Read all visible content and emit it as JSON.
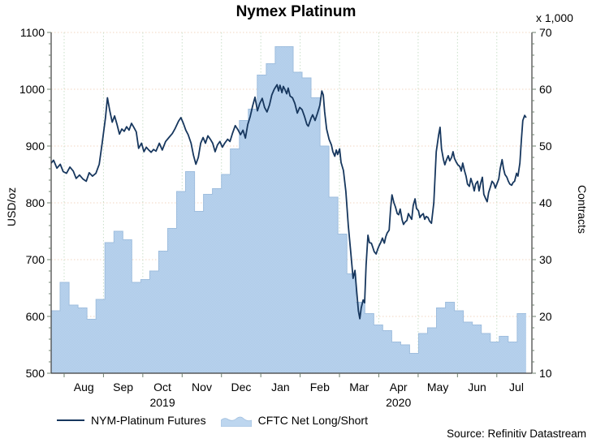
{
  "title": "Nymex Platinum",
  "source_note": "Source: Refinitiv Datastream",
  "legend": {
    "items": [
      {
        "label": "NYM-Platinum Futures",
        "swatch": "line"
      },
      {
        "label": "CFTC Net Long/Short",
        "swatch": "area"
      }
    ]
  },
  "colors": {
    "line": "#17375e",
    "area_fill": "#bdd6ef",
    "area_fill2": "#abc8e7",
    "area_edge": "#9fbede",
    "grid_vertical": "#c9dfc9",
    "grid_horizontal": "#f2d6c2",
    "axis": "#3c3c3c",
    "tick": "#6e7f6e",
    "text": "#000000"
  },
  "chart_data": {
    "type": "line+area",
    "title": "Nymex Platinum",
    "x_axis": {
      "months": [
        "Aug",
        "Sep",
        "Oct",
        "Nov",
        "Dec",
        "Jan",
        "Feb",
        "Mar",
        "Apr",
        "May",
        "Jun",
        "Jul"
      ],
      "years": [
        {
          "label": "2019",
          "under_month_index": 2
        },
        {
          "label": "2020",
          "under_month_index": 8
        }
      ],
      "start_offset_frac": 0.027,
      "month_width_frac": 0.081818
    },
    "left_axis": {
      "label": "USD/oz",
      "min": 500,
      "max": 1100,
      "major_step": 100,
      "minor_step": 20
    },
    "right_axis": {
      "label": "Contracts",
      "header": "x 1,000",
      "min": 10,
      "max": 70,
      "major_step": 10,
      "minor_step": 2
    },
    "grid": {
      "horizontal": true,
      "vertical": true,
      "style": "dotted"
    },
    "series": [
      {
        "name": "NYM-Platinum Futures",
        "type": "line",
        "axis": "left",
        "units": "USD/oz",
        "points": [
          [
            0,
            870
          ],
          [
            0.005,
            875
          ],
          [
            0.012,
            861
          ],
          [
            0.019,
            868
          ],
          [
            0.025,
            855
          ],
          [
            0.032,
            852
          ],
          [
            0.039,
            863
          ],
          [
            0.046,
            856
          ],
          [
            0.052,
            843
          ],
          [
            0.059,
            849
          ],
          [
            0.066,
            842
          ],
          [
            0.073,
            838
          ],
          [
            0.079,
            853
          ],
          [
            0.086,
            847
          ],
          [
            0.093,
            852
          ],
          [
            0.1,
            868
          ],
          [
            0.106,
            905
          ],
          [
            0.113,
            950
          ],
          [
            0.117,
            985
          ],
          [
            0.122,
            962
          ],
          [
            0.127,
            942
          ],
          [
            0.132,
            953
          ],
          [
            0.137,
            938
          ],
          [
            0.142,
            921
          ],
          [
            0.147,
            930
          ],
          [
            0.152,
            926
          ],
          [
            0.157,
            934
          ],
          [
            0.162,
            928
          ],
          [
            0.167,
            940
          ],
          [
            0.172,
            933
          ],
          [
            0.177,
            925
          ],
          [
            0.182,
            896
          ],
          [
            0.188,
            905
          ],
          [
            0.193,
            890
          ],
          [
            0.198,
            898
          ],
          [
            0.203,
            893
          ],
          [
            0.208,
            889
          ],
          [
            0.213,
            894
          ],
          [
            0.218,
            891
          ],
          [
            0.225,
            905
          ],
          [
            0.231,
            893
          ],
          [
            0.238,
            908
          ],
          [
            0.245,
            915
          ],
          [
            0.252,
            922
          ],
          [
            0.258,
            931
          ],
          [
            0.265,
            944
          ],
          [
            0.27,
            950
          ],
          [
            0.275,
            940
          ],
          [
            0.28,
            928
          ],
          [
            0.285,
            920
          ],
          [
            0.291,
            905
          ],
          [
            0.296,
            884
          ],
          [
            0.301,
            868
          ],
          [
            0.306,
            880
          ],
          [
            0.311,
            905
          ],
          [
            0.316,
            915
          ],
          [
            0.321,
            905
          ],
          [
            0.326,
            918
          ],
          [
            0.331,
            912
          ],
          [
            0.336,
            905
          ],
          [
            0.341,
            890
          ],
          [
            0.346,
            902
          ],
          [
            0.351,
            908
          ],
          [
            0.356,
            898
          ],
          [
            0.361,
            905
          ],
          [
            0.367,
            912
          ],
          [
            0.372,
            908
          ],
          [
            0.377,
            922
          ],
          [
            0.383,
            936
          ],
          [
            0.389,
            928
          ],
          [
            0.394,
            920
          ],
          [
            0.399,
            928
          ],
          [
            0.404,
            914
          ],
          [
            0.409,
            938
          ],
          [
            0.414,
            952
          ],
          [
            0.419,
            970
          ],
          [
            0.424,
            986
          ],
          [
            0.429,
            962
          ],
          [
            0.434,
            975
          ],
          [
            0.439,
            984
          ],
          [
            0.444,
            968
          ],
          [
            0.449,
            960
          ],
          [
            0.454,
            972
          ],
          [
            0.459,
            990
          ],
          [
            0.464,
            1000
          ],
          [
            0.47,
            1008
          ],
          [
            0.473,
            997
          ],
          [
            0.476,
            1007
          ],
          [
            0.48,
            994
          ],
          [
            0.483,
            1005
          ],
          [
            0.486,
            1000
          ],
          [
            0.49,
            992
          ],
          [
            0.493,
            1002
          ],
          [
            0.497,
            988
          ],
          [
            0.502,
            985
          ],
          [
            0.507,
            975
          ],
          [
            0.512,
            958
          ],
          [
            0.517,
            968
          ],
          [
            0.522,
            964
          ],
          [
            0.527,
            952
          ],
          [
            0.532,
            938
          ],
          [
            0.535,
            935
          ],
          [
            0.541,
            950
          ],
          [
            0.544,
            955
          ],
          [
            0.549,
            945
          ],
          [
            0.554,
            958
          ],
          [
            0.559,
            972
          ],
          [
            0.563,
            997
          ],
          [
            0.566,
            990
          ],
          [
            0.569,
            960
          ],
          [
            0.573,
            930
          ],
          [
            0.578,
            912
          ],
          [
            0.583,
            902
          ],
          [
            0.586,
            890
          ],
          [
            0.59,
            882
          ],
          [
            0.593,
            893
          ],
          [
            0.596,
            885
          ],
          [
            0.6,
            895
          ],
          [
            0.603,
            871
          ],
          [
            0.608,
            857
          ],
          [
            0.613,
            820
          ],
          [
            0.618,
            760
          ],
          [
            0.623,
            715
          ],
          [
            0.628,
            667
          ],
          [
            0.632,
            681
          ],
          [
            0.635,
            650
          ],
          [
            0.639,
            610
          ],
          [
            0.642,
            596
          ],
          [
            0.645,
            615
          ],
          [
            0.649,
            629
          ],
          [
            0.652,
            624
          ],
          [
            0.655,
            690
          ],
          [
            0.659,
            743
          ],
          [
            0.662,
            730
          ],
          [
            0.666,
            729
          ],
          [
            0.669,
            722
          ],
          [
            0.672,
            714
          ],
          [
            0.676,
            710
          ],
          [
            0.679,
            718
          ],
          [
            0.682,
            724
          ],
          [
            0.686,
            731
          ],
          [
            0.689,
            738
          ],
          [
            0.693,
            729
          ],
          [
            0.696,
            740
          ],
          [
            0.699,
            747
          ],
          [
            0.703,
            752
          ],
          [
            0.706,
            790
          ],
          [
            0.709,
            814
          ],
          [
            0.713,
            800
          ],
          [
            0.716,
            793
          ],
          [
            0.72,
            781
          ],
          [
            0.723,
            779
          ],
          [
            0.726,
            789
          ],
          [
            0.73,
            770
          ],
          [
            0.733,
            762
          ],
          [
            0.736,
            766
          ],
          [
            0.74,
            769
          ],
          [
            0.743,
            781
          ],
          [
            0.747,
            775
          ],
          [
            0.75,
            771
          ],
          [
            0.753,
            795
          ],
          [
            0.757,
            807
          ],
          [
            0.76,
            790
          ],
          [
            0.764,
            786
          ],
          [
            0.767,
            774
          ],
          [
            0.77,
            778
          ],
          [
            0.774,
            781
          ],
          [
            0.777,
            771
          ],
          [
            0.78,
            776
          ],
          [
            0.784,
            774
          ],
          [
            0.787,
            768
          ],
          [
            0.791,
            764
          ],
          [
            0.796,
            800
          ],
          [
            0.801,
            890
          ],
          [
            0.806,
            920
          ],
          [
            0.809,
            933
          ],
          [
            0.812,
            895
          ],
          [
            0.816,
            876
          ],
          [
            0.819,
            867
          ],
          [
            0.822,
            875
          ],
          [
            0.826,
            883
          ],
          [
            0.829,
            874
          ],
          [
            0.833,
            880
          ],
          [
            0.836,
            890
          ],
          [
            0.839,
            878
          ],
          [
            0.843,
            871
          ],
          [
            0.846,
            867
          ],
          [
            0.85,
            864
          ],
          [
            0.853,
            856
          ],
          [
            0.856,
            870
          ],
          [
            0.86,
            856
          ],
          [
            0.863,
            847
          ],
          [
            0.866,
            833
          ],
          [
            0.87,
            829
          ],
          [
            0.873,
            843
          ],
          [
            0.877,
            832
          ],
          [
            0.88,
            821
          ],
          [
            0.883,
            833
          ],
          [
            0.887,
            838
          ],
          [
            0.89,
            821
          ],
          [
            0.894,
            836
          ],
          [
            0.897,
            845
          ],
          [
            0.9,
            815
          ],
          [
            0.904,
            807
          ],
          [
            0.907,
            802
          ],
          [
            0.91,
            818
          ],
          [
            0.914,
            829
          ],
          [
            0.917,
            838
          ],
          [
            0.921,
            834
          ],
          [
            0.924,
            826
          ],
          [
            0.927,
            833
          ],
          [
            0.931,
            842
          ],
          [
            0.934,
            860
          ],
          [
            0.938,
            876
          ],
          [
            0.941,
            860
          ],
          [
            0.944,
            850
          ],
          [
            0.948,
            845
          ],
          [
            0.951,
            838
          ],
          [
            0.954,
            833
          ],
          [
            0.958,
            831
          ],
          [
            0.961,
            836
          ],
          [
            0.964,
            838
          ],
          [
            0.968,
            852
          ],
          [
            0.971,
            847
          ],
          [
            0.975,
            870
          ],
          [
            0.978,
            910
          ],
          [
            0.981,
            945
          ],
          [
            0.985,
            954
          ],
          [
            0.988,
            950
          ]
        ]
      },
      {
        "name": "CFTC Net Long/Short",
        "type": "area-step",
        "axis": "right",
        "units": "thousand contracts",
        "end_frac": 0.988,
        "weekly_values": [
          21,
          26,
          22,
          21.5,
          19.5,
          23,
          33,
          35,
          33.5,
          26,
          26.5,
          28,
          31.5,
          35.5,
          42,
          45.5,
          38.5,
          41.5,
          42.5,
          45,
          49.5,
          54.5,
          56.5,
          62.5,
          64.5,
          67.5,
          67.5,
          63,
          62,
          58.5,
          50,
          41,
          34.5,
          27.5,
          22.5,
          20.5,
          18.5,
          17.5,
          15.5,
          15,
          13.5,
          17,
          18,
          21.5,
          22.5,
          21,
          19,
          18.5,
          17,
          15.5,
          16.5,
          15.5,
          20.5
        ]
      }
    ]
  }
}
